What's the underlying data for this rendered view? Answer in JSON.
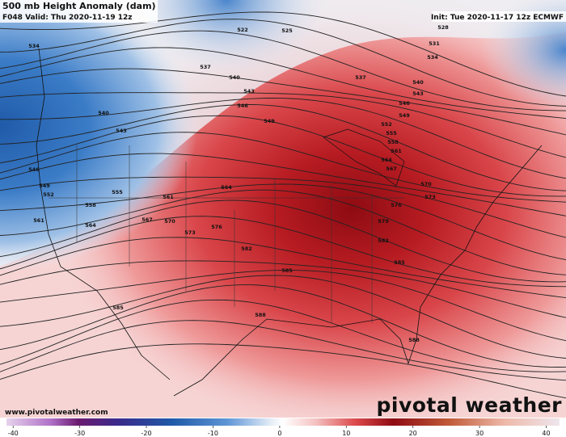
{
  "header": {
    "title": "500 mb Height Anomaly (dam)",
    "valid": "F048 Valid: Thu 2020-11-19 12z",
    "init": "Init: Tue 2020-11-17 12z ECMWF"
  },
  "map": {
    "contour_labels": [
      "522",
      "525",
      "528",
      "531",
      "534",
      "534",
      "537",
      "537",
      "540",
      "540",
      "543",
      "543",
      "540",
      "543",
      "546",
      "546",
      "549",
      "549",
      "552",
      "546",
      "549",
      "552",
      "555",
      "558",
      "561",
      "561",
      "564",
      "564",
      "567",
      "570",
      "573",
      "576",
      "579",
      "582",
      "582",
      "585",
      "585",
      "585",
      "588",
      "588",
      "570",
      "573",
      "576",
      "555",
      "558",
      "561",
      "564",
      "567"
    ]
  },
  "footer": {
    "url": "www.pivotalweather.com",
    "watermark": "pivotal weather"
  },
  "colorbar": {
    "ticks": [
      -40,
      -30,
      -20,
      -10,
      0,
      10,
      20,
      30,
      40
    ],
    "range": [
      -41,
      42
    ]
  }
}
